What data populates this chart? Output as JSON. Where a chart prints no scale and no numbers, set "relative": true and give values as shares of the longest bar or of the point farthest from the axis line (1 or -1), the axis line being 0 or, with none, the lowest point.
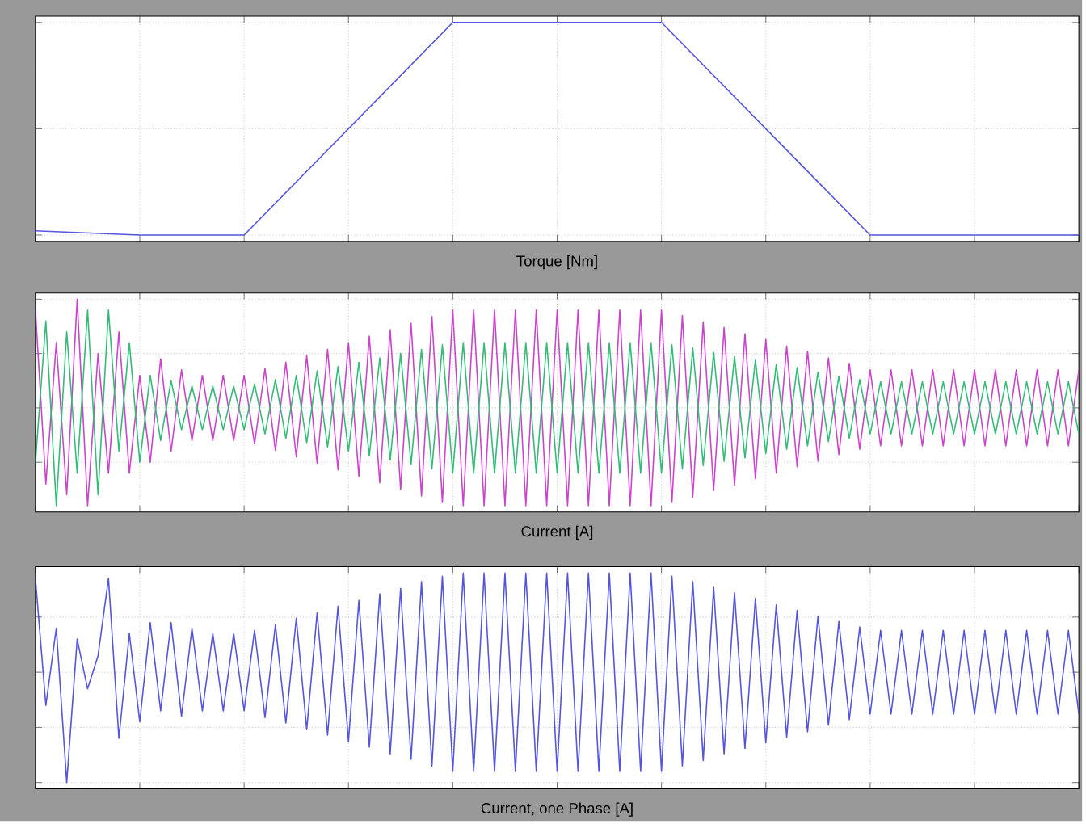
{
  "chart_data": [
    {
      "type": "line",
      "xlabel": "Torque [Nm]",
      "relative": true,
      "grid": true,
      "tick_labels": false,
      "color": "#5555dd",
      "categories": [
        null,
        null,
        null,
        null,
        null,
        null,
        null,
        null,
        null,
        null,
        null
      ],
      "values": [
        0.02,
        0,
        0,
        0.5,
        1,
        1,
        1,
        0.5,
        0,
        0,
        0
      ]
    },
    {
      "type": "line",
      "xlabel": "Current [A]",
      "relative": true,
      "grid": true,
      "tick_labels": false,
      "categories": [
        null,
        null,
        null,
        null,
        null,
        null,
        null,
        null,
        null,
        null,
        null,
        null,
        null,
        null,
        null,
        null,
        null,
        null,
        null,
        null,
        null,
        null,
        null,
        null,
        null,
        null,
        null,
        null,
        null,
        null,
        null,
        null,
        null,
        null,
        null,
        null,
        null,
        null,
        null,
        null,
        null,
        null,
        null,
        null,
        null,
        null,
        null,
        null,
        null,
        null,
        null,
        null,
        null,
        null,
        null,
        null,
        null,
        null,
        null,
        null,
        null,
        null,
        null,
        null,
        null,
        null,
        null,
        null,
        null,
        null,
        null,
        null,
        null,
        null,
        null,
        null,
        null,
        null,
        null,
        null,
        null,
        null,
        null,
        null,
        null,
        null,
        null,
        null,
        null,
        null,
        null,
        null,
        null,
        null,
        null,
        null,
        null,
        null,
        null,
        null,
        null
      ],
      "series": [
        {
          "color": "#cc44cc",
          "values": [
            0.9,
            -0.7,
            0.6,
            -0.8,
            1.0,
            -0.9,
            0.5,
            -0.6,
            0.7,
            -0.6,
            0.3,
            -0.5,
            0.45,
            -0.4,
            0.35,
            -0.3,
            0.3,
            -0.3,
            0.3,
            -0.3,
            0.3,
            -0.33,
            0.36,
            -0.39,
            0.42,
            -0.45,
            0.48,
            -0.51,
            0.54,
            -0.57,
            0.6,
            -0.63,
            0.66,
            -0.69,
            0.72,
            -0.75,
            0.78,
            -0.81,
            0.84,
            -0.87,
            0.9,
            -0.9,
            0.9,
            -0.9,
            0.9,
            -0.9,
            0.9,
            -0.9,
            0.9,
            -0.9,
            0.9,
            -0.9,
            0.9,
            -0.9,
            0.9,
            -0.9,
            0.9,
            -0.9,
            0.9,
            -0.9,
            0.9,
            -0.87,
            0.85,
            -0.82,
            0.79,
            -0.76,
            0.74,
            -0.71,
            0.68,
            -0.65,
            0.63,
            -0.6,
            0.57,
            -0.54,
            0.52,
            -0.49,
            0.46,
            -0.43,
            0.41,
            -0.38,
            0.35,
            -0.35,
            0.35,
            -0.35,
            0.35,
            -0.35,
            0.35,
            -0.35,
            0.35,
            -0.35,
            0.35,
            -0.35,
            0.35,
            -0.35,
            0.35,
            -0.35,
            0.35,
            -0.35,
            0.35,
            -0.35,
            0.35
          ]
        },
        {
          "color": "#33bb77",
          "values": [
            -0.5,
            0.8,
            -0.9,
            0.7,
            -0.6,
            0.9,
            -0.8,
            0.9,
            -0.4,
            0.6,
            -0.5,
            0.3,
            -0.3,
            0.25,
            -0.2,
            0.2,
            -0.2,
            0.2,
            -0.2,
            0.2,
            -0.2,
            0.22,
            -0.24,
            0.26,
            -0.28,
            0.3,
            -0.32,
            0.34,
            -0.36,
            0.38,
            -0.4,
            0.42,
            -0.44,
            0.46,
            -0.48,
            0.5,
            -0.52,
            0.54,
            -0.56,
            0.58,
            -0.6,
            0.6,
            -0.6,
            0.6,
            -0.6,
            0.6,
            -0.6,
            0.6,
            -0.6,
            0.6,
            -0.6,
            0.6,
            -0.6,
            0.6,
            -0.6,
            0.6,
            -0.6,
            0.6,
            -0.6,
            0.6,
            -0.6,
            0.58,
            -0.56,
            0.55,
            -0.53,
            0.51,
            -0.49,
            0.47,
            -0.46,
            0.44,
            -0.42,
            0.4,
            -0.38,
            0.37,
            -0.35,
            0.33,
            -0.31,
            0.29,
            -0.28,
            0.26,
            -0.24,
            0.24,
            -0.24,
            0.24,
            -0.24,
            0.24,
            -0.24,
            0.24,
            -0.24,
            0.24,
            -0.24,
            0.24,
            -0.24,
            0.24,
            -0.24,
            0.24,
            -0.24,
            0.24,
            -0.24,
            0.24,
            -0.24
          ]
        }
      ]
    },
    {
      "type": "line",
      "xlabel": "Current, one Phase [A]",
      "relative": true,
      "grid": true,
      "tick_labels": false,
      "color": "#5555dd",
      "categories": [
        null,
        null,
        null,
        null,
        null,
        null,
        null,
        null,
        null,
        null,
        null,
        null,
        null,
        null,
        null,
        null,
        null,
        null,
        null,
        null,
        null,
        null,
        null,
        null,
        null,
        null,
        null,
        null,
        null,
        null,
        null,
        null,
        null,
        null,
        null,
        null,
        null,
        null,
        null,
        null,
        null,
        null,
        null,
        null,
        null,
        null,
        null,
        null,
        null,
        null,
        null,
        null,
        null,
        null,
        null,
        null,
        null,
        null,
        null,
        null,
        null,
        null,
        null,
        null,
        null,
        null,
        null,
        null,
        null,
        null,
        null,
        null,
        null,
        null,
        null,
        null,
        null,
        null,
        null,
        null,
        null,
        null,
        null,
        null,
        null,
        null,
        null,
        null,
        null,
        null,
        null,
        null,
        null,
        null,
        null,
        null,
        null,
        null,
        null,
        null,
        null
      ],
      "values": [
        0.85,
        -0.3,
        0.4,
        -1.0,
        0.3,
        -0.15,
        0.15,
        0.85,
        -0.6,
        0.35,
        -0.45,
        0.45,
        -0.35,
        0.45,
        -0.4,
        0.4,
        -0.35,
        0.35,
        -0.35,
        0.35,
        -0.35,
        0.38,
        -0.41,
        0.43,
        -0.46,
        0.49,
        -0.52,
        0.54,
        -0.57,
        0.6,
        -0.63,
        0.65,
        -0.68,
        0.71,
        -0.74,
        0.76,
        -0.79,
        0.82,
        -0.85,
        0.87,
        -0.9,
        0.9,
        -0.9,
        0.9,
        -0.9,
        0.9,
        -0.9,
        0.9,
        -0.9,
        0.9,
        -0.9,
        0.9,
        -0.9,
        0.9,
        -0.9,
        0.9,
        -0.9,
        0.9,
        -0.9,
        0.9,
        -0.9,
        0.87,
        -0.85,
        0.82,
        -0.8,
        0.77,
        -0.74,
        0.72,
        -0.69,
        0.67,
        -0.64,
        0.61,
        -0.59,
        0.56,
        -0.54,
        0.51,
        -0.48,
        0.46,
        -0.43,
        0.41,
        -0.38,
        0.38,
        -0.38,
        0.38,
        -0.38,
        0.38,
        -0.38,
        0.38,
        -0.38,
        0.38,
        -0.38,
        0.38,
        -0.38,
        0.38,
        -0.38,
        0.38,
        -0.38,
        0.38,
        -0.38,
        0.38,
        -0.38
      ]
    }
  ]
}
